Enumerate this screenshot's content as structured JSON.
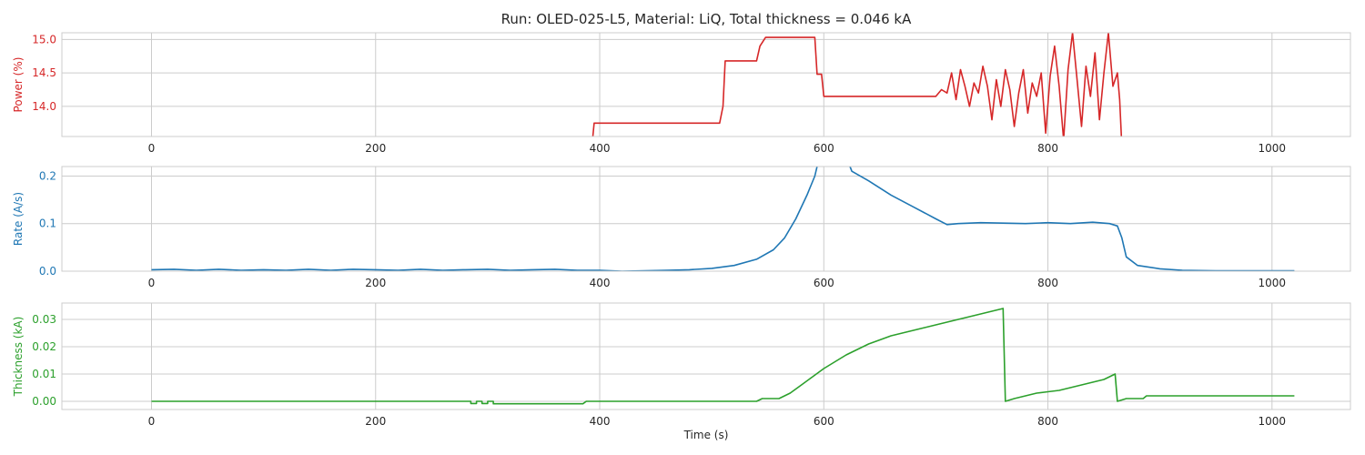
{
  "title": "Run: OLED-025-L5, Material: LiQ, Total thickness = 0.046 kA",
  "xlabel": "Time (s)",
  "chart_data": [
    {
      "type": "line",
      "ylabel": "Power (%)",
      "color": "#d62728",
      "xlim": [
        -80,
        1070
      ],
      "ylim": [
        13.55,
        15.1
      ],
      "xticks": [
        0,
        200,
        400,
        600,
        800,
        1000
      ],
      "yticks": [
        14.0,
        14.5,
        15.0
      ],
      "ytick_labels": [
        "14.0",
        "14.5",
        "15.0"
      ],
      "grid": true,
      "series": [
        {
          "points": [
            [
              393,
              13.4
            ],
            [
              395,
              13.75
            ],
            [
              507,
              13.75
            ],
            [
              510,
              14.0
            ],
            [
              512,
              14.68
            ],
            [
              540,
              14.68
            ],
            [
              543,
              14.9
            ],
            [
              548,
              15.03
            ],
            [
              592,
              15.03
            ],
            [
              594,
              14.48
            ],
            [
              598,
              14.48
            ],
            [
              600,
              14.15
            ],
            [
              700,
              14.15
            ],
            [
              705,
              14.25
            ],
            [
              710,
              14.2
            ],
            [
              714,
              14.5
            ],
            [
              718,
              14.1
            ],
            [
              722,
              14.55
            ],
            [
              726,
              14.3
            ],
            [
              730,
              14.0
            ],
            [
              734,
              14.35
            ],
            [
              738,
              14.2
            ],
            [
              742,
              14.6
            ],
            [
              746,
              14.3
            ],
            [
              750,
              13.8
            ],
            [
              754,
              14.4
            ],
            [
              758,
              14.0
            ],
            [
              762,
              14.55
            ],
            [
              766,
              14.25
            ],
            [
              770,
              13.7
            ],
            [
              774,
              14.2
            ],
            [
              778,
              14.55
            ],
            [
              782,
              13.9
            ],
            [
              786,
              14.35
            ],
            [
              790,
              14.15
            ],
            [
              794,
              14.5
            ],
            [
              798,
              13.6
            ],
            [
              802,
              14.45
            ],
            [
              806,
              14.9
            ],
            [
              810,
              14.3
            ],
            [
              814,
              13.5
            ],
            [
              818,
              14.55
            ],
            [
              822,
              15.1
            ],
            [
              826,
              14.4
            ],
            [
              830,
              13.7
            ],
            [
              834,
              14.6
            ],
            [
              838,
              14.15
            ],
            [
              842,
              14.8
            ],
            [
              846,
              13.8
            ],
            [
              850,
              14.5
            ],
            [
              854,
              15.1
            ],
            [
              858,
              14.3
            ],
            [
              862,
              14.5
            ],
            [
              864,
              14.1
            ],
            [
              866,
              13.4
            ]
          ]
        }
      ]
    },
    {
      "type": "line",
      "ylabel": "Rate (A/s)",
      "color": "#1f77b4",
      "xlim": [
        -80,
        1070
      ],
      "ylim": [
        0.0,
        0.22
      ],
      "xticks": [
        0,
        200,
        400,
        600,
        800,
        1000
      ],
      "yticks": [
        0.0,
        0.1,
        0.2
      ],
      "ytick_labels": [
        "0.0",
        "0.1",
        "0.2"
      ],
      "grid": true,
      "series": [
        {
          "points": [
            [
              0,
              0.003
            ],
            [
              20,
              0.004
            ],
            [
              40,
              0.002
            ],
            [
              60,
              0.004
            ],
            [
              80,
              0.002
            ],
            [
              100,
              0.003
            ],
            [
              120,
              0.002
            ],
            [
              140,
              0.004
            ],
            [
              160,
              0.002
            ],
            [
              180,
              0.004
            ],
            [
              200,
              0.003
            ],
            [
              220,
              0.002
            ],
            [
              240,
              0.004
            ],
            [
              260,
              0.002
            ],
            [
              280,
              0.003
            ],
            [
              300,
              0.004
            ],
            [
              320,
              0.002
            ],
            [
              340,
              0.003
            ],
            [
              360,
              0.004
            ],
            [
              380,
              0.002
            ],
            [
              400,
              0.002
            ],
            [
              420,
              0.0
            ],
            [
              440,
              0.001
            ],
            [
              460,
              0.002
            ],
            [
              480,
              0.003
            ],
            [
              500,
              0.006
            ],
            [
              520,
              0.012
            ],
            [
              540,
              0.025
            ],
            [
              555,
              0.045
            ],
            [
              565,
              0.07
            ],
            [
              575,
              0.11
            ],
            [
              585,
              0.16
            ],
            [
              592,
              0.2
            ],
            [
              596,
              0.24
            ],
            [
              620,
              0.24
            ],
            [
              625,
              0.21
            ],
            [
              640,
              0.19
            ],
            [
              660,
              0.16
            ],
            [
              680,
              0.135
            ],
            [
              700,
              0.11
            ],
            [
              710,
              0.098
            ],
            [
              720,
              0.1
            ],
            [
              740,
              0.102
            ],
            [
              760,
              0.101
            ],
            [
              780,
              0.1
            ],
            [
              800,
              0.102
            ],
            [
              820,
              0.1
            ],
            [
              840,
              0.103
            ],
            [
              855,
              0.1
            ],
            [
              862,
              0.095
            ],
            [
              866,
              0.07
            ],
            [
              870,
              0.03
            ],
            [
              880,
              0.012
            ],
            [
              900,
              0.005
            ],
            [
              920,
              0.002
            ],
            [
              950,
              0.001
            ],
            [
              980,
              0.001
            ],
            [
              1020,
              0.001
            ]
          ]
        }
      ]
    },
    {
      "type": "line",
      "ylabel": "Thickness (kA)",
      "color": "#2ca02c",
      "xlim": [
        -80,
        1070
      ],
      "ylim": [
        -0.003,
        0.036
      ],
      "xticks": [
        0,
        200,
        400,
        600,
        800,
        1000
      ],
      "yticks": [
        0.0,
        0.01,
        0.02,
        0.03
      ],
      "ytick_labels": [
        "0.00",
        "0.01",
        "0.02",
        "0.03"
      ],
      "grid": true,
      "series": [
        {
          "points": [
            [
              0,
              0.0
            ],
            [
              285,
              0.0
            ],
            [
              285,
              -0.0008
            ],
            [
              290,
              -0.0008
            ],
            [
              290,
              0.0
            ],
            [
              295,
              0.0
            ],
            [
              295,
              -0.0008
            ],
            [
              300,
              -0.0008
            ],
            [
              300,
              0.0
            ],
            [
              305,
              0.0
            ],
            [
              305,
              -0.0009
            ],
            [
              385,
              -0.0009
            ],
            [
              388,
              0.0
            ],
            [
              540,
              0.0
            ],
            [
              545,
              0.001
            ],
            [
              560,
              0.001
            ],
            [
              570,
              0.003
            ],
            [
              580,
              0.006
            ],
            [
              590,
              0.009
            ],
            [
              600,
              0.012
            ],
            [
              610,
              0.0145
            ],
            [
              620,
              0.017
            ],
            [
              630,
              0.019
            ],
            [
              640,
              0.021
            ],
            [
              650,
              0.0225
            ],
            [
              660,
              0.024
            ],
            [
              670,
              0.025
            ],
            [
              680,
              0.026
            ],
            [
              690,
              0.027
            ],
            [
              700,
              0.028
            ],
            [
              710,
              0.029
            ],
            [
              720,
              0.03
            ],
            [
              730,
              0.031
            ],
            [
              740,
              0.032
            ],
            [
              750,
              0.033
            ],
            [
              760,
              0.034
            ],
            [
              760,
              0.034
            ],
            [
              762,
              0.0
            ],
            [
              770,
              0.001
            ],
            [
              780,
              0.002
            ],
            [
              790,
              0.003
            ],
            [
              800,
              0.0035
            ],
            [
              810,
              0.004
            ],
            [
              820,
              0.005
            ],
            [
              830,
              0.006
            ],
            [
              840,
              0.007
            ],
            [
              850,
              0.008
            ],
            [
              855,
              0.009
            ],
            [
              860,
              0.01
            ],
            [
              860,
              0.01
            ],
            [
              862,
              0.0
            ],
            [
              870,
              0.001
            ],
            [
              885,
              0.001
            ],
            [
              888,
              0.002
            ],
            [
              1020,
              0.002
            ]
          ]
        }
      ]
    }
  ]
}
